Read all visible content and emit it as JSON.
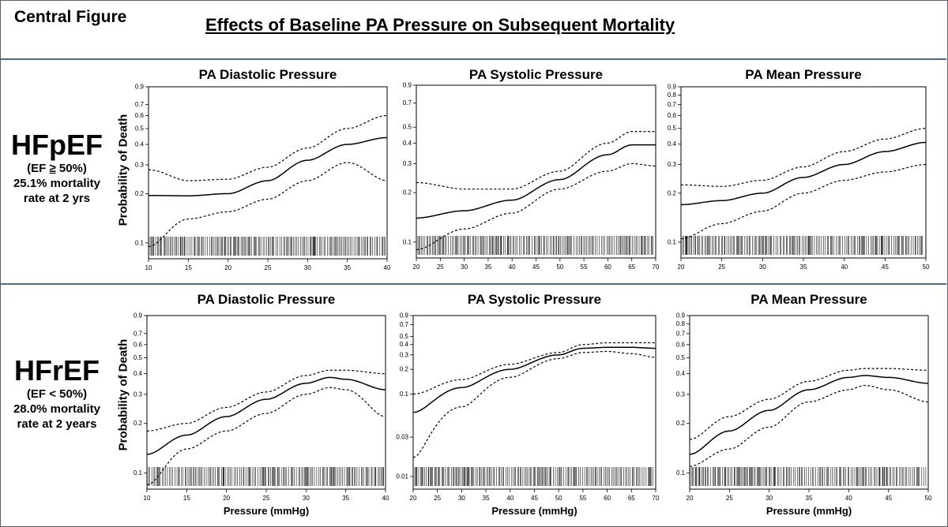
{
  "header": {
    "label": "Central Figure",
    "title": "Effects of Baseline PA Pressure on Subsequent Mortality"
  },
  "rows": [
    {
      "group": "HFpEF",
      "ef_prefix": "(EF ",
      "ef_symbol": "≥",
      "ef_suffix": " 50%)",
      "rate_line1": "25.1% mortality",
      "rate_line2": "rate at 2 yrs"
    },
    {
      "group": "HFrEF",
      "ef_prefix": "(EF ",
      "ef_symbol": "<",
      "ef_suffix": " 50%)",
      "rate_line1": "28.0% mortality",
      "rate_line2": "rate at 2 years"
    }
  ],
  "ylabel": "Probability of Death",
  "xlabel": "Pressure (mmHg)",
  "colors": {
    "border": "#4f6a86",
    "line": "#000000"
  },
  "chart_data": [
    {
      "type": "line",
      "row": 0,
      "col": 0,
      "title": "PA Diastolic Pressure",
      "xlim": [
        10,
        40
      ],
      "ylim": [
        0.08,
        0.9
      ],
      "yscale": "log",
      "xticks": [
        10,
        15,
        20,
        25,
        30,
        35,
        40
      ],
      "yticks": [
        0.1,
        0.2,
        0.3,
        0.4,
        0.5,
        0.6,
        0.7,
        0.9
      ],
      "ytick_labels": [
        "0.1",
        "0.2",
        "0.3",
        "0.4",
        "0.5",
        "0.6",
        "0.7",
        "0.9"
      ],
      "xlabel": "",
      "rug": true,
      "rug_seed": 11,
      "series": [
        {
          "name": "estimate",
          "style": "solid",
          "x": [
            10,
            15,
            20,
            25,
            30,
            35,
            40
          ],
          "y": [
            0.195,
            0.194,
            0.2,
            0.24,
            0.32,
            0.4,
            0.44
          ]
        },
        {
          "name": "upper 95% CI",
          "style": "dashed",
          "x": [
            10,
            15,
            20,
            25,
            30,
            35,
            40
          ],
          "y": [
            0.28,
            0.24,
            0.245,
            0.29,
            0.38,
            0.5,
            0.6
          ]
        },
        {
          "name": "lower 95% CI",
          "style": "dashed",
          "x": [
            10,
            15,
            20,
            25,
            30,
            35,
            40
          ],
          "y": [
            0.095,
            0.14,
            0.155,
            0.185,
            0.24,
            0.31,
            0.24
          ]
        }
      ]
    },
    {
      "type": "line",
      "row": 0,
      "col": 1,
      "title": "PA Systolic Pressure",
      "xlim": [
        20,
        70
      ],
      "ylim": [
        0.08,
        0.9
      ],
      "yscale": "log",
      "xticks": [
        20,
        25,
        30,
        35,
        40,
        45,
        50,
        55,
        60,
        65,
        70
      ],
      "yticks": [
        0.1,
        0.2,
        0.3,
        0.4,
        0.5,
        0.7,
        0.9
      ],
      "ytick_labels": [
        "0.1",
        "0.2",
        "0.3",
        "0.4",
        "0.5",
        "0.7",
        "0.9"
      ],
      "xlabel": "",
      "rug": true,
      "rug_seed": 23,
      "series": [
        {
          "name": "estimate",
          "style": "solid",
          "x": [
            20,
            30,
            40,
            50,
            60,
            65,
            70
          ],
          "y": [
            0.14,
            0.155,
            0.18,
            0.24,
            0.34,
            0.39,
            0.39
          ]
        },
        {
          "name": "upper 95% CI",
          "style": "dashed",
          "x": [
            20,
            30,
            40,
            50,
            60,
            65,
            70
          ],
          "y": [
            0.23,
            0.21,
            0.21,
            0.27,
            0.4,
            0.47,
            0.47
          ]
        },
        {
          "name": "lower 95% CI",
          "style": "dashed",
          "x": [
            20,
            30,
            40,
            50,
            60,
            65,
            70
          ],
          "y": [
            0.09,
            0.12,
            0.15,
            0.21,
            0.27,
            0.3,
            0.29
          ]
        }
      ]
    },
    {
      "type": "line",
      "row": 0,
      "col": 2,
      "title": "PA Mean Pressure",
      "xlim": [
        20,
        50
      ],
      "ylim": [
        0.08,
        0.9
      ],
      "yscale": "log",
      "xticks": [
        20,
        25,
        30,
        35,
        40,
        45,
        50
      ],
      "yticks": [
        0.1,
        0.2,
        0.3,
        0.4,
        0.5,
        0.6,
        0.7,
        0.8,
        0.9
      ],
      "ytick_labels": [
        "0.1",
        "0.2",
        "0.3",
        "0.4",
        "0.5",
        "0.6",
        "0.7",
        "0.8",
        "0.9"
      ],
      "xlabel": "",
      "rug": true,
      "rug_seed": 37,
      "series": [
        {
          "name": "estimate",
          "style": "solid",
          "x": [
            20,
            25,
            30,
            35,
            40,
            45,
            50
          ],
          "y": [
            0.17,
            0.18,
            0.2,
            0.25,
            0.3,
            0.36,
            0.41
          ]
        },
        {
          "name": "upper 95% CI",
          "style": "dashed",
          "x": [
            20,
            25,
            30,
            35,
            40,
            45,
            50
          ],
          "y": [
            0.225,
            0.22,
            0.24,
            0.29,
            0.36,
            0.43,
            0.5
          ]
        },
        {
          "name": "lower 95% CI",
          "style": "dashed",
          "x": [
            20,
            25,
            30,
            35,
            40,
            45,
            50
          ],
          "y": [
            0.105,
            0.13,
            0.155,
            0.2,
            0.24,
            0.27,
            0.3
          ]
        }
      ]
    },
    {
      "type": "line",
      "row": 1,
      "col": 0,
      "title": "PA Diastolic Pressure",
      "xlim": [
        10,
        40
      ],
      "ylim": [
        0.08,
        0.9
      ],
      "yscale": "log",
      "xticks": [
        10,
        15,
        20,
        25,
        30,
        35,
        40
      ],
      "yticks": [
        0.1,
        0.2,
        0.3,
        0.4,
        0.5,
        0.6,
        0.7,
        0.9
      ],
      "ytick_labels": [
        "0.1",
        "0.2",
        "0.3",
        "0.4",
        "0.5",
        "0.6",
        "0.7",
        "0.9"
      ],
      "xlabel": "Pressure (mmHg)",
      "rug": true,
      "rug_seed": 41,
      "series": [
        {
          "name": "estimate",
          "style": "solid",
          "x": [
            10,
            15,
            20,
            25,
            30,
            33,
            35,
            40
          ],
          "y": [
            0.13,
            0.17,
            0.22,
            0.28,
            0.35,
            0.38,
            0.37,
            0.32
          ]
        },
        {
          "name": "upper 95% CI",
          "style": "dashed",
          "x": [
            10,
            15,
            20,
            25,
            30,
            33,
            35,
            40
          ],
          "y": [
            0.18,
            0.2,
            0.25,
            0.31,
            0.39,
            0.42,
            0.42,
            0.4
          ]
        },
        {
          "name": "lower 95% CI",
          "style": "dashed",
          "x": [
            10,
            15,
            20,
            25,
            30,
            33,
            35,
            40
          ],
          "y": [
            0.085,
            0.14,
            0.18,
            0.23,
            0.3,
            0.33,
            0.32,
            0.22
          ]
        }
      ]
    },
    {
      "type": "line",
      "row": 1,
      "col": 1,
      "title": "PA Systolic Pressure",
      "xlim": [
        20,
        70
      ],
      "ylim": [
        0.007,
        0.9
      ],
      "yscale": "log",
      "xticks": [
        20,
        25,
        30,
        35,
        40,
        45,
        50,
        55,
        60,
        65,
        70
      ],
      "yticks": [
        0.01,
        0.03,
        0.1,
        0.2,
        0.3,
        0.4,
        0.5,
        0.7,
        0.9
      ],
      "ytick_labels": [
        "0.01",
        "0.03",
        "0.1",
        "0.2",
        "0.3",
        "0.4",
        "0.5",
        "0.7",
        "0.9"
      ],
      "xlabel": "Pressure (mmHg)",
      "rug": true,
      "rug_seed": 53,
      "series": [
        {
          "name": "estimate",
          "style": "solid",
          "x": [
            20,
            30,
            40,
            50,
            55,
            60,
            65,
            70
          ],
          "y": [
            0.06,
            0.12,
            0.2,
            0.3,
            0.36,
            0.37,
            0.37,
            0.36
          ]
        },
        {
          "name": "upper 95% CI",
          "style": "dashed",
          "x": [
            20,
            30,
            40,
            50,
            55,
            60,
            65,
            70
          ],
          "y": [
            0.1,
            0.15,
            0.23,
            0.32,
            0.4,
            0.42,
            0.42,
            0.42
          ]
        },
        {
          "name": "lower 95% CI",
          "style": "dashed",
          "x": [
            20,
            30,
            40,
            50,
            55,
            60,
            65,
            70
          ],
          "y": [
            0.017,
            0.07,
            0.16,
            0.27,
            0.32,
            0.33,
            0.31,
            0.28
          ]
        }
      ]
    },
    {
      "type": "line",
      "row": 1,
      "col": 2,
      "title": "PA Mean Pressure",
      "xlim": [
        20,
        50
      ],
      "ylim": [
        0.08,
        0.9
      ],
      "yscale": "log",
      "xticks": [
        20,
        25,
        30,
        35,
        40,
        45,
        50
      ],
      "yticks": [
        0.1,
        0.2,
        0.3,
        0.4,
        0.5,
        0.6,
        0.7,
        0.8,
        0.9
      ],
      "ytick_labels": [
        "0.1",
        "0.2",
        "0.3",
        "0.4",
        "0.5",
        "0.6",
        "0.7",
        "0.8",
        "0.9"
      ],
      "xlabel": "Pressure (mmHg)",
      "rug": true,
      "rug_seed": 67,
      "series": [
        {
          "name": "estimate",
          "style": "solid",
          "x": [
            20,
            25,
            30,
            35,
            40,
            42,
            45,
            50
          ],
          "y": [
            0.13,
            0.18,
            0.24,
            0.32,
            0.38,
            0.39,
            0.38,
            0.35
          ]
        },
        {
          "name": "upper 95% CI",
          "style": "dashed",
          "x": [
            20,
            25,
            30,
            35,
            40,
            42,
            45,
            50
          ],
          "y": [
            0.16,
            0.22,
            0.28,
            0.36,
            0.42,
            0.43,
            0.43,
            0.42
          ]
        },
        {
          "name": "lower 95% CI",
          "style": "dashed",
          "x": [
            20,
            25,
            30,
            35,
            40,
            42,
            45,
            50
          ],
          "y": [
            0.11,
            0.14,
            0.19,
            0.27,
            0.32,
            0.34,
            0.32,
            0.27
          ]
        }
      ]
    }
  ]
}
